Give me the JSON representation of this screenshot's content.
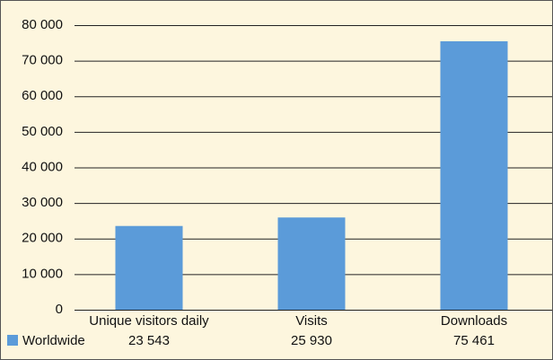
{
  "chart_data": {
    "type": "bar",
    "categories": [
      "Unique visitors daily",
      "Visits",
      "Downloads"
    ],
    "series": [
      {
        "name": "Worldwide",
        "color": "#5b9bd9",
        "values": [
          23543,
          25930,
          75461
        ],
        "value_labels": [
          "23 543",
          "25 930",
          "75 461"
        ]
      }
    ],
    "ylim": [
      0,
      80000
    ],
    "yticks": [
      0,
      {
        "value": 10000,
        "label": "10 000"
      },
      {
        "value": 20000,
        "label": "20 000"
      },
      {
        "value": 30000,
        "label": "30 000"
      },
      {
        "value": 40000,
        "label": "40 000"
      },
      {
        "value": 50000,
        "label": "50 000"
      },
      {
        "value": 60000,
        "label": "60 000"
      },
      {
        "value": 70000,
        "label": "70 000"
      },
      {
        "value": 80000,
        "label": "80 000"
      }
    ],
    "grid": true
  }
}
